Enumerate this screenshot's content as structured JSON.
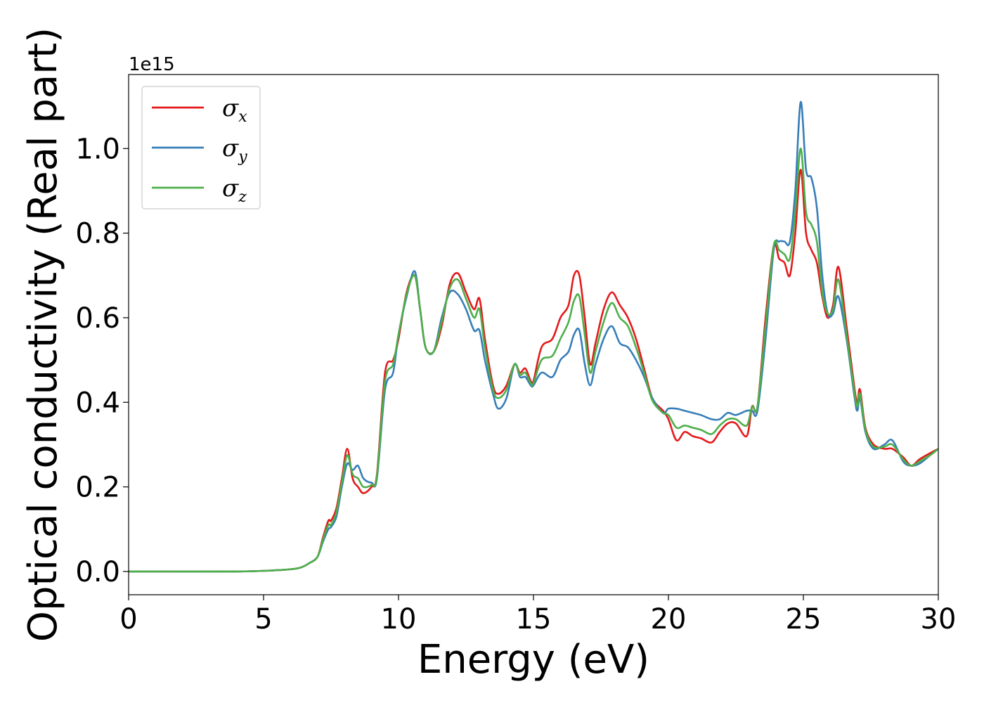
{
  "chart_data": {
    "type": "line",
    "xlabel": "Energy (eV)",
    "ylabel": "Optical conductivity (Real part)",
    "y_offset_label": "1e15",
    "xlim": [
      0,
      30
    ],
    "ylim": [
      -0.055,
      1.175
    ],
    "x_ticks": [
      0,
      5,
      10,
      15,
      20,
      25,
      30
    ],
    "x_tick_labels": [
      "0",
      "5",
      "10",
      "15",
      "20",
      "25",
      "30"
    ],
    "y_ticks": [
      0.0,
      0.2,
      0.4,
      0.6,
      0.8,
      1.0
    ],
    "y_tick_labels": [
      "0.0",
      "0.2",
      "0.4",
      "0.6",
      "0.8",
      "1.0"
    ],
    "grid": false,
    "legend_position": "top-left",
    "series": [
      {
        "name": "σx",
        "symbol": "σ",
        "subscript": "x",
        "color": "#e41a1c",
        "x": [
          0,
          4,
          5.5,
          6.3,
          6.7,
          7.0,
          7.2,
          7.4,
          7.5,
          7.7,
          7.9,
          8.1,
          8.3,
          8.5,
          8.7,
          9.0,
          9.2,
          9.5,
          9.8,
          10.0,
          10.3,
          10.6,
          10.8,
          11.0,
          11.3,
          11.6,
          11.9,
          12.2,
          12.5,
          12.8,
          13.0,
          13.2,
          13.5,
          13.7,
          14.0,
          14.3,
          14.5,
          14.7,
          14.9,
          15.0,
          15.3,
          15.7,
          16.0,
          16.3,
          16.5,
          16.7,
          16.9,
          17.1,
          17.3,
          17.6,
          17.9,
          18.2,
          18.5,
          18.8,
          19.1,
          19.4,
          19.8,
          20.0,
          20.3,
          20.6,
          20.9,
          21.2,
          21.6,
          21.9,
          22.2,
          22.5,
          22.9,
          23.1,
          23.3,
          23.6,
          23.9,
          24.1,
          24.3,
          24.5,
          24.7,
          24.9,
          25.1,
          25.3,
          25.5,
          25.7,
          25.9,
          26.1,
          26.3,
          26.6,
          26.9,
          27.0,
          27.1,
          27.3,
          27.6,
          28.0,
          28.3,
          28.7,
          29.0,
          29.3,
          29.7,
          30.0
        ],
        "y": [
          0.0,
          0.0,
          0.003,
          0.008,
          0.02,
          0.035,
          0.08,
          0.12,
          0.12,
          0.15,
          0.22,
          0.29,
          0.22,
          0.2,
          0.185,
          0.2,
          0.23,
          0.47,
          0.5,
          0.55,
          0.66,
          0.7,
          0.62,
          0.53,
          0.52,
          0.58,
          0.68,
          0.705,
          0.66,
          0.62,
          0.645,
          0.55,
          0.44,
          0.42,
          0.44,
          0.49,
          0.47,
          0.48,
          0.45,
          0.45,
          0.53,
          0.55,
          0.6,
          0.63,
          0.7,
          0.7,
          0.6,
          0.49,
          0.54,
          0.62,
          0.66,
          0.63,
          0.6,
          0.55,
          0.48,
          0.41,
          0.38,
          0.36,
          0.31,
          0.33,
          0.32,
          0.315,
          0.305,
          0.33,
          0.35,
          0.35,
          0.32,
          0.39,
          0.39,
          0.6,
          0.77,
          0.74,
          0.73,
          0.7,
          0.8,
          0.95,
          0.8,
          0.76,
          0.73,
          0.65,
          0.6,
          0.63,
          0.72,
          0.58,
          0.43,
          0.4,
          0.43,
          0.34,
          0.3,
          0.29,
          0.29,
          0.27,
          0.25,
          0.265,
          0.28,
          0.29
        ]
      },
      {
        "name": "σy",
        "symbol": "σ",
        "subscript": "y",
        "color": "#377eb8",
        "x": [
          0,
          4,
          5.5,
          6.3,
          6.7,
          7.0,
          7.2,
          7.4,
          7.5,
          7.7,
          7.9,
          8.1,
          8.3,
          8.5,
          8.7,
          9.0,
          9.2,
          9.5,
          9.8,
          10.0,
          10.3,
          10.6,
          10.8,
          11.0,
          11.3,
          11.6,
          11.9,
          12.2,
          12.5,
          12.8,
          13.0,
          13.2,
          13.5,
          13.7,
          14.0,
          14.3,
          14.5,
          14.7,
          14.9,
          15.0,
          15.3,
          15.7,
          16.0,
          16.3,
          16.5,
          16.7,
          16.9,
          17.1,
          17.3,
          17.6,
          17.9,
          18.2,
          18.5,
          18.8,
          19.1,
          19.4,
          19.8,
          20.0,
          20.3,
          20.6,
          20.9,
          21.2,
          21.6,
          21.9,
          22.2,
          22.5,
          22.9,
          23.1,
          23.3,
          23.6,
          23.9,
          24.1,
          24.3,
          24.5,
          24.7,
          24.9,
          25.1,
          25.3,
          25.5,
          25.7,
          25.9,
          26.1,
          26.3,
          26.6,
          26.9,
          27.0,
          27.1,
          27.3,
          27.6,
          28.0,
          28.3,
          28.7,
          29.0,
          29.3,
          29.7,
          30.0
        ],
        "y": [
          0.0,
          0.0,
          0.003,
          0.008,
          0.02,
          0.035,
          0.07,
          0.1,
          0.105,
          0.13,
          0.2,
          0.255,
          0.24,
          0.25,
          0.22,
          0.21,
          0.22,
          0.43,
          0.47,
          0.56,
          0.65,
          0.71,
          0.62,
          0.53,
          0.52,
          0.6,
          0.66,
          0.655,
          0.62,
          0.57,
          0.57,
          0.5,
          0.42,
          0.385,
          0.41,
          0.49,
          0.46,
          0.46,
          0.44,
          0.44,
          0.47,
          0.46,
          0.5,
          0.52,
          0.56,
          0.57,
          0.49,
          0.44,
          0.49,
          0.55,
          0.58,
          0.54,
          0.53,
          0.5,
          0.46,
          0.41,
          0.375,
          0.385,
          0.385,
          0.38,
          0.375,
          0.37,
          0.36,
          0.36,
          0.375,
          0.37,
          0.38,
          0.38,
          0.38,
          0.55,
          0.76,
          0.78,
          0.78,
          0.78,
          0.9,
          1.11,
          0.95,
          0.93,
          0.86,
          0.7,
          0.61,
          0.61,
          0.65,
          0.55,
          0.41,
          0.38,
          0.41,
          0.33,
          0.29,
          0.3,
          0.31,
          0.26,
          0.25,
          0.255,
          0.275,
          0.29
        ]
      },
      {
        "name": "σz",
        "symbol": "σ",
        "subscript": "z",
        "color": "#4daf4a",
        "x": [
          0,
          4,
          5.5,
          6.3,
          6.7,
          7.0,
          7.2,
          7.4,
          7.5,
          7.7,
          7.9,
          8.1,
          8.3,
          8.5,
          8.7,
          9.0,
          9.2,
          9.5,
          9.8,
          10.0,
          10.3,
          10.6,
          10.8,
          11.0,
          11.3,
          11.6,
          11.9,
          12.2,
          12.5,
          12.8,
          13.0,
          13.2,
          13.5,
          13.7,
          14.0,
          14.3,
          14.5,
          14.7,
          14.9,
          15.0,
          15.3,
          15.7,
          16.0,
          16.3,
          16.5,
          16.7,
          16.9,
          17.1,
          17.3,
          17.6,
          17.9,
          18.2,
          18.5,
          18.8,
          19.1,
          19.4,
          19.8,
          20.0,
          20.3,
          20.6,
          20.9,
          21.2,
          21.6,
          21.9,
          22.2,
          22.5,
          22.9,
          23.1,
          23.3,
          23.6,
          23.9,
          24.1,
          24.3,
          24.5,
          24.7,
          24.9,
          25.1,
          25.3,
          25.5,
          25.7,
          25.9,
          26.1,
          26.3,
          26.6,
          26.9,
          27.0,
          27.1,
          27.3,
          27.6,
          28.0,
          28.3,
          28.7,
          29.0,
          29.3,
          29.7,
          30.0
        ],
        "y": [
          0.0,
          0.0,
          0.003,
          0.008,
          0.02,
          0.035,
          0.075,
          0.11,
          0.11,
          0.14,
          0.21,
          0.275,
          0.23,
          0.22,
          0.2,
          0.205,
          0.225,
          0.45,
          0.49,
          0.56,
          0.655,
          0.7,
          0.62,
          0.53,
          0.52,
          0.59,
          0.67,
          0.69,
          0.645,
          0.6,
          0.62,
          0.53,
          0.43,
          0.41,
          0.43,
          0.49,
          0.465,
          0.47,
          0.445,
          0.445,
          0.5,
          0.51,
          0.55,
          0.59,
          0.64,
          0.65,
          0.56,
          0.47,
          0.52,
          0.59,
          0.635,
          0.6,
          0.58,
          0.53,
          0.47,
          0.405,
          0.375,
          0.37,
          0.34,
          0.345,
          0.34,
          0.335,
          0.325,
          0.345,
          0.36,
          0.36,
          0.345,
          0.39,
          0.39,
          0.58,
          0.77,
          0.76,
          0.75,
          0.74,
          0.85,
          1.0,
          0.85,
          0.82,
          0.78,
          0.66,
          0.61,
          0.62,
          0.69,
          0.56,
          0.42,
          0.39,
          0.42,
          0.335,
          0.295,
          0.295,
          0.3,
          0.265,
          0.25,
          0.26,
          0.275,
          0.29
        ]
      }
    ]
  }
}
